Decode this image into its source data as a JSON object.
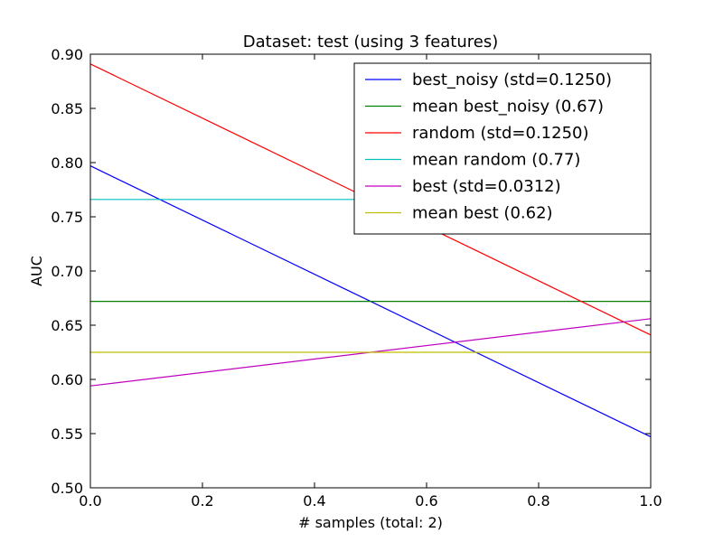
{
  "chart_data": {
    "type": "line",
    "title": "Dataset: test (using 3 features)",
    "xlabel": "# samples (total: 2)",
    "ylabel": "AUC",
    "xlim": [
      0.0,
      1.0
    ],
    "ylim": [
      0.5,
      0.9
    ],
    "xticks": [
      "0.0",
      "0.2",
      "0.4",
      "0.6",
      "0.8",
      "1.0"
    ],
    "yticks": [
      "0.50",
      "0.55",
      "0.60",
      "0.65",
      "0.70",
      "0.75",
      "0.80",
      "0.85",
      "0.90"
    ],
    "grid": false,
    "legend_position": "top-right",
    "series": [
      {
        "name": "best_noisy (std=0.1250)",
        "color": "#0000ff",
        "x": [
          0.0,
          1.0
        ],
        "y": [
          0.797,
          0.547
        ]
      },
      {
        "name": "mean best_noisy (0.67)",
        "color": "#008000",
        "x": [
          0.0,
          1.0
        ],
        "y": [
          0.672,
          0.672
        ]
      },
      {
        "name": "random (std=0.1250)",
        "color": "#ff0000",
        "x": [
          0.0,
          1.0
        ],
        "y": [
          0.891,
          0.641
        ]
      },
      {
        "name": "mean random (0.77)",
        "color": "#00bfbf",
        "x": [
          0.0,
          1.0
        ],
        "y": [
          0.766,
          0.766
        ]
      },
      {
        "name": "best (std=0.0312)",
        "color": "#bf00bf",
        "x": [
          0.0,
          1.0
        ],
        "y": [
          0.594,
          0.656
        ]
      },
      {
        "name": "mean best (0.62)",
        "color": "#bfbf00",
        "x": [
          0.0,
          1.0
        ],
        "y": [
          0.625,
          0.625
        ]
      }
    ]
  }
}
